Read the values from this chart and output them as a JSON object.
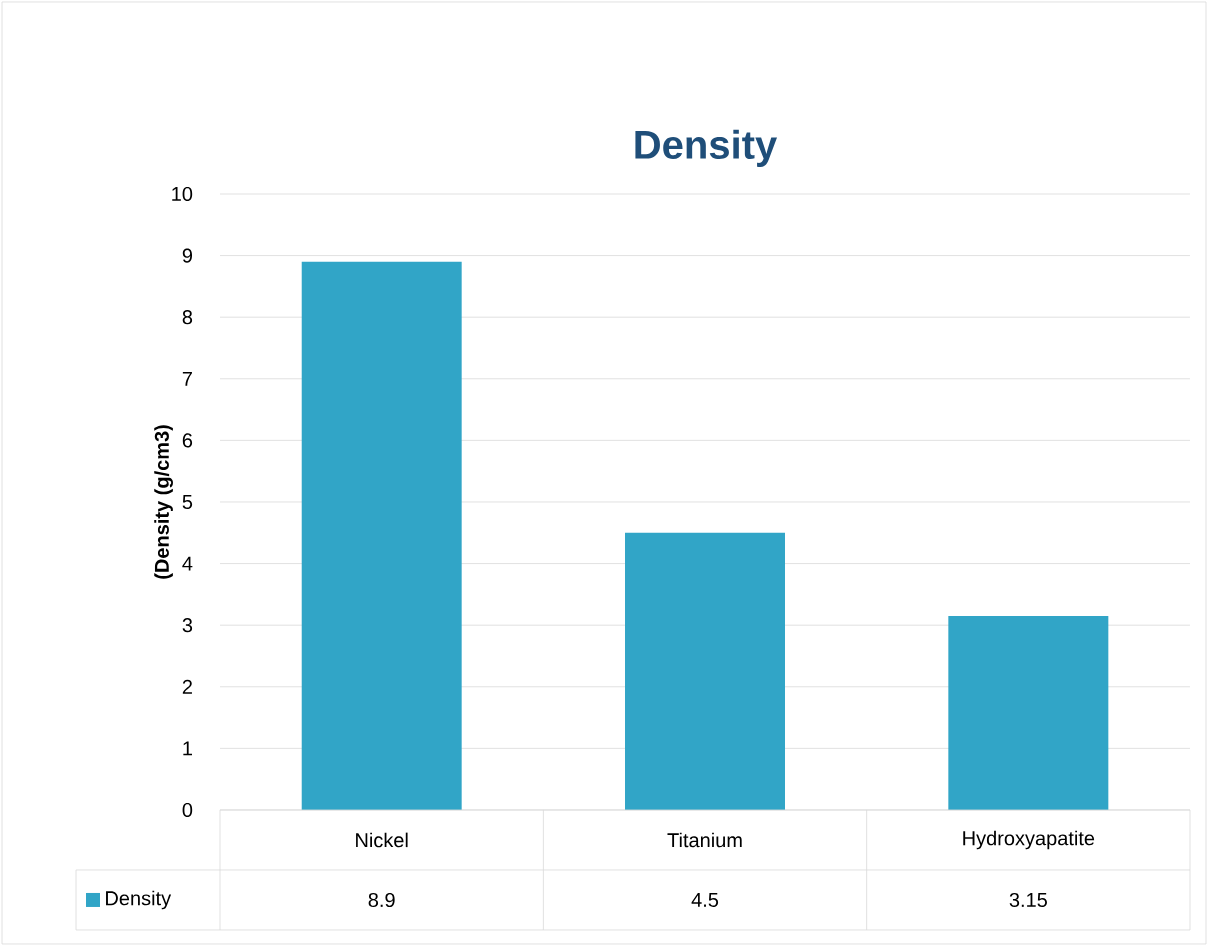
{
  "chart_data": {
    "type": "bar",
    "title": "Density",
    "ylabel": "(Density (g/cm3)",
    "categories": [
      "Nickel",
      "Titanium",
      "Hydroxyapatite"
    ],
    "series": [
      {
        "name": "Density",
        "color": "#31a5c7",
        "values": [
          8.9,
          4.5,
          3.15
        ]
      }
    ],
    "ylim": [
      0,
      10
    ],
    "yticks": [
      0,
      1,
      2,
      3,
      4,
      5,
      6,
      7,
      8,
      9,
      10
    ],
    "grid": "y",
    "data_labels": true
  }
}
